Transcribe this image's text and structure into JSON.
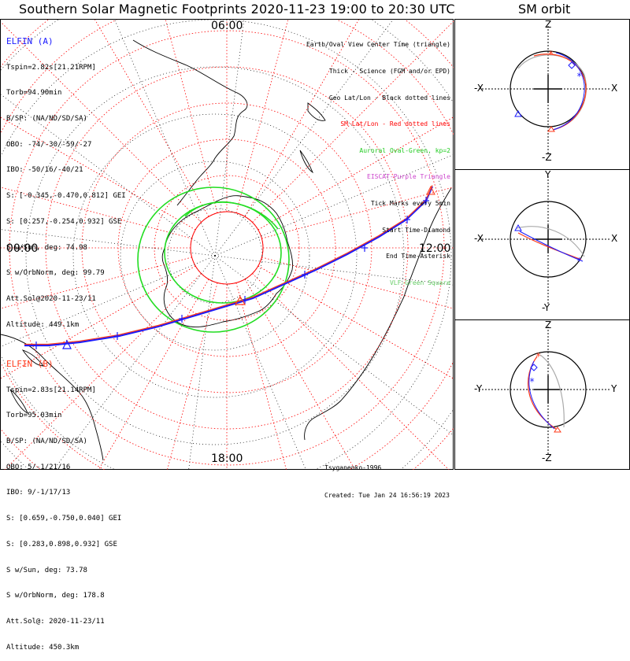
{
  "title": "Southern Solar Magnetic Footprints 2020-11-23 19:00 to 20:30 UTC",
  "sm_orbit_title": "SM orbit",
  "mlt_labels": {
    "top": "06:00",
    "left": "00:00",
    "right": "12:00",
    "bottom": "18:00"
  },
  "elfin_a": {
    "header": "ELFIN (A)",
    "color": "#1a1aff",
    "lines": [
      "Tspin=2.82s[21.21RPM]",
      "Torb=94.90min",
      "B/SP: (NA/ND/SD/SA)",
      "OBO: -74/-30/-59/-27",
      "IBO: -50/16/-40/21",
      "S: [-0.345,-0.470,0.812] GEI",
      "S: [0.257,-0.254,0.932] GSE",
      "S w/Sun, deg: 74.98",
      "S w/OrbNorm, deg: 99.79",
      "Att.Sol@2020-11-23/11",
      "Altitude: 449.1km"
    ]
  },
  "elfin_b": {
    "header": "ELFIN (B)",
    "color": "#ff3a1a",
    "lines": [
      "Tspin=2.83s[21.14RPM]",
      "Torb=95.03min",
      "B/SP: (NA/ND/SD/SA)",
      "OBO: 5/-1/21/16",
      "IBO: 9/-1/17/13",
      "S: [0.659,-0.750,0.040] GEI",
      "S: [0.283,0.898,0.932] GSE",
      "S w/Sun, deg: 73.78",
      "S w/OrbNorm, deg: 178.8",
      "Att.Sol@: 2020-11-23/11",
      "Altitude: 450.3km"
    ]
  },
  "legend": [
    {
      "text": "Earth/Oval View Center Time (triangle)",
      "color": "#000000"
    },
    {
      "text": "Thick - Science (FGM and/or EPD)",
      "color": "#000000"
    },
    {
      "text": "Geo Lat/Lon - Black dotted lines",
      "color": "#000000"
    },
    {
      "text": "SM Lat/Lon - Red dotted lines",
      "color": "#ff0000"
    },
    {
      "text": "Auroral Oval-Green, kp=2",
      "color": "#22cc22"
    },
    {
      "text": "EISCAT-Purple Triangle",
      "color": "#cc44cc"
    },
    {
      "text": "Tick Marks every 5min",
      "color": "#000000"
    },
    {
      "text": "Start Time-Diamond",
      "color": "#000000"
    },
    {
      "text": "End Time-Asterisk",
      "color": "#000000"
    },
    {
      "text": "VLF-Green Square",
      "color": "#66cc66"
    }
  ],
  "credits": {
    "author": "Tsyganenko-1996",
    "created": "Created: Tue Jan 24 16:56:19 2023"
  },
  "orbit_panels": [
    {
      "top": "Z",
      "bottom": "-Z",
      "left": "-X",
      "right": "X"
    },
    {
      "top": "Y",
      "bottom": "-Y",
      "left": "-X",
      "right": "X"
    },
    {
      "top": "Z",
      "bottom": "-Z",
      "left": "-Y",
      "right": "Y"
    }
  ],
  "colors": {
    "grid_sm": "#ff0000",
    "grid_geo": "#000000",
    "oval": "#22dd22",
    "track_a": "#1a1aff",
    "track_b": "#ff3a1a",
    "orbit_gray": "#aaaaaa"
  }
}
